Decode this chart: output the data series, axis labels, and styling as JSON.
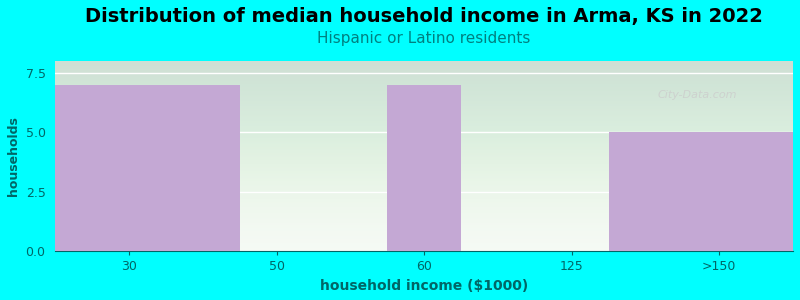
{
  "title": "Distribution of median household income in Arma, KS in 2022",
  "subtitle": "Hispanic or Latino residents",
  "xlabel": "household income ($1000)",
  "ylabel": "households",
  "background_color": "#00FFFF",
  "plot_bg_color_top": "#f8faf8",
  "plot_bg_color_bottom": "#e8f5e8",
  "bar_color": "#C4A8D4",
  "title_fontsize": 14,
  "subtitle_fontsize": 11,
  "subtitle_color": "#008080",
  "ylabel_color": "#006666",
  "xlabel_color": "#006666",
  "tick_color": "#006666",
  "yticks": [
    0,
    2.5,
    5,
    7.5
  ],
  "ylim": [
    0,
    8.0
  ],
  "watermark": "City-Data.com"
}
